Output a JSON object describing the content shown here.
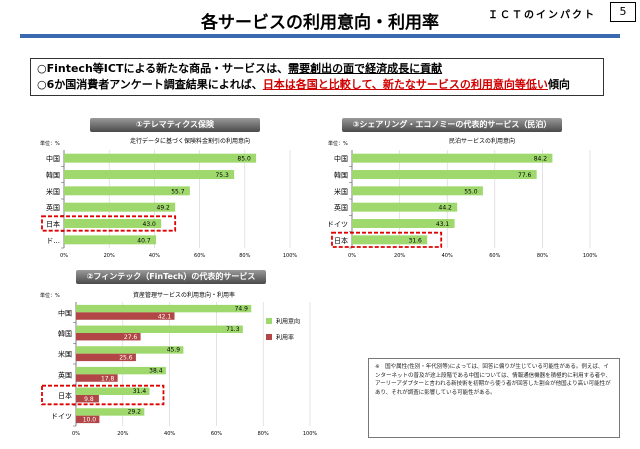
{
  "header": {
    "title": "各サービスの利用意向・利用率",
    "tag": "ＩＣＴのインパクト",
    "page_number": "5"
  },
  "summary": {
    "line1_a": "○Fintech等ICTによる新たな商品・サービスは、",
    "line1_b": "需要創出の面で経済成長に貢献",
    "line2_a": "○6か国消費者アンケート調査結果によれば、",
    "line2_b": "日本は各国と比較して、新たなサービスの利用意向等低い",
    "line2_c": "傾向"
  },
  "note": "※　国や属性(性別・年代別等)によっては、回答に偏りが生じている可能性がある。例えば、インターネットの普及が途上段階である中国については、情報通信機器を積極的に利用する者や、アーリーアダプターと言われる新技術を初期から使う者が回答した割合が他国より高い可能性があり、それが調査に影響している可能性がある。",
  "colors": {
    "green": "#9fd96e",
    "red": "#b24545",
    "highlight": "#e00000"
  },
  "chart_data": [
    {
      "type": "bar",
      "header": "①テレマティクス保険",
      "title": "走行データに基づく保険料金割引の利用意向",
      "unit": "単位：%",
      "categories": [
        "中国",
        "韓国",
        "米国",
        "英国",
        "日本",
        "ド..."
      ],
      "series": [
        {
          "values": [
            85.0,
            75.3,
            55.7,
            49.2,
            43.0,
            40.7
          ]
        }
      ],
      "xlim": [
        0,
        100
      ],
      "ticks": [
        "0%",
        "20%",
        "40%",
        "60%",
        "80%",
        "100%"
      ],
      "highlight": "日本"
    },
    {
      "type": "bar",
      "header": "③シェアリング・エコノミーの代表的サービス（民泊）",
      "title": "民泊サービスの利用意向",
      "unit": "単位：%",
      "categories": [
        "中国",
        "韓国",
        "米国",
        "英国",
        "ドイツ",
        "日本"
      ],
      "series": [
        {
          "values": [
            84.2,
            77.6,
            55.0,
            44.2,
            43.1,
            31.6
          ]
        }
      ],
      "xlim": [
        0,
        100
      ],
      "ticks": [
        "0%",
        "20%",
        "40%",
        "60%",
        "80%",
        "100%"
      ],
      "highlight": "日本"
    },
    {
      "type": "bar",
      "header": "②フィンテック（FinTech）の代表的サービス",
      "title": "資産管理サービスの利用意向・利用率",
      "unit": "単位：%",
      "categories": [
        "中国",
        "韓国",
        "米国",
        "英国",
        "日本",
        "ドイツ"
      ],
      "series": [
        {
          "name": "利用意向",
          "values": [
            74.9,
            71.3,
            45.9,
            38.4,
            31.4,
            29.2
          ]
        },
        {
          "name": "利用率",
          "values": [
            42.1,
            27.6,
            25.6,
            17.8,
            9.8,
            10.0
          ]
        }
      ],
      "xlim": [
        0,
        100
      ],
      "ticks": [
        "0%",
        "20%",
        "40%",
        "60%",
        "80%",
        "100%"
      ],
      "highlight": "日本",
      "legend": "right"
    }
  ]
}
